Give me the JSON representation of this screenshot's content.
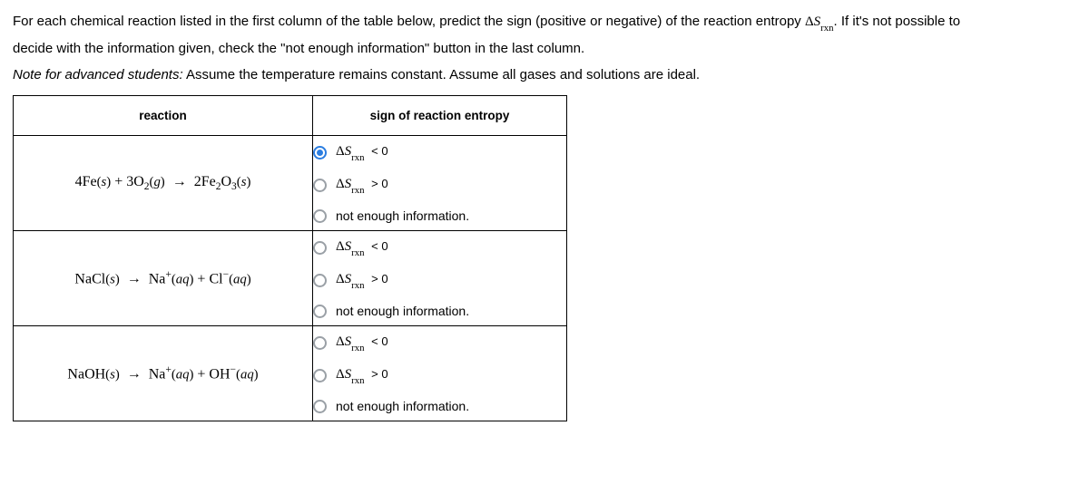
{
  "intro_line1_a": "For each chemical reaction listed in the first column of the table below, predict the sign (positive or negative) of the reaction entropy ",
  "intro_line1_b": ". If it's not possible to",
  "intro_line2": "decide with the information given, check the \"not enough information\" button in the last column.",
  "note_prefix": "Note for advanced students:",
  "note_rest": " Assume the temperature remains constant. Assume all gases and solutions are ideal.",
  "delta": "Δ",
  "s": "S",
  "rxn_sub": "rxn",
  "headers": {
    "reaction": "reaction",
    "sign": "sign of reaction entropy"
  },
  "options": {
    "lt": "< 0",
    "gt": "> 0",
    "nei": "not enough information."
  },
  "rows": [
    {
      "reaction_html": "4Fe<span class='phase'>(<span class='s' style='font-style:italic'>s</span>)</span> + 3O<span class='ssub'>2</span><span class='phase'>(<span class='s' style='font-style:italic'>g</span>)</span> <span class='arrow'>→</span> 2Fe<span class='ssub'>2</span>O<span class='ssub'>3</span><span class='phase'>(<span class='s' style='font-style:italic'>s</span>)</span>",
      "selected": 0
    },
    {
      "reaction_html": "NaCl<span class='phase'>(<span class='s' style='font-style:italic'>s</span>)</span> <span class='arrow'>→</span> Na<span class='ssup'>+</span><span class='phase'>(<span class='s' style='font-style:italic'>aq</span>)</span> + Cl<span class='ssup'>−</span><span class='phase'>(<span class='s' style='font-style:italic'>aq</span>)</span>",
      "selected": -1
    },
    {
      "reaction_html": "NaOH<span class='phase'>(<span class='s' style='font-style:italic'>s</span>)</span> <span class='arrow'>→</span> Na<span class='ssup'>+</span><span class='phase'>(<span class='s' style='font-style:italic'>aq</span>)</span> + OH<span class='ssup'>−</span><span class='phase'>(<span class='s' style='font-style:italic'>aq</span>)</span>",
      "selected": -1
    }
  ]
}
